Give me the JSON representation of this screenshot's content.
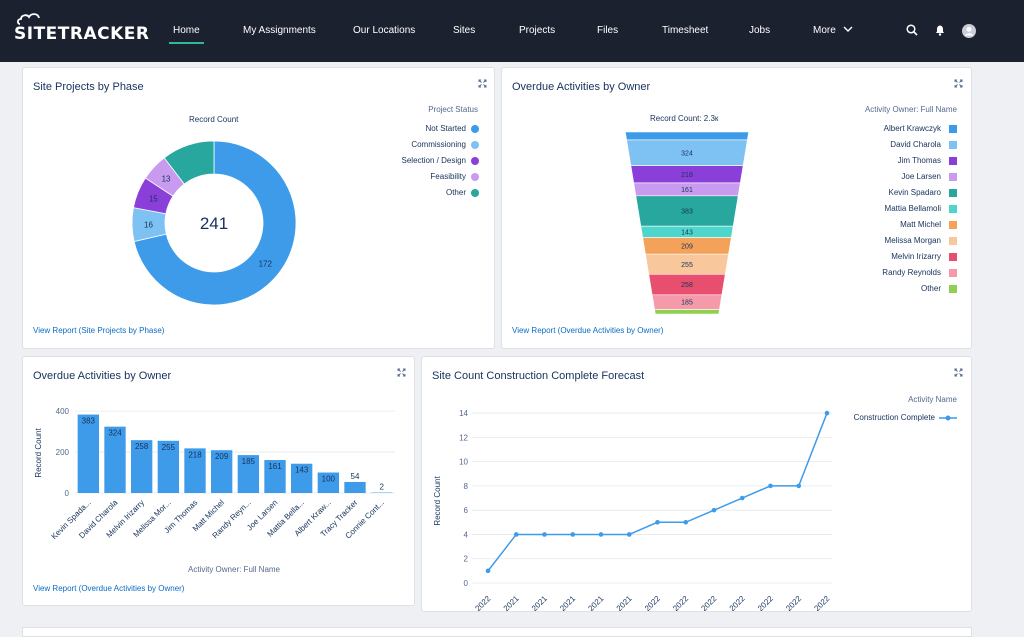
{
  "nav": {
    "logo": "SITETRACKER",
    "items": [
      {
        "label": "Home",
        "active": true
      },
      {
        "label": "My Assignments"
      },
      {
        "label": "Our Locations"
      },
      {
        "label": "Sites"
      },
      {
        "label": "Projects"
      },
      {
        "label": "Files"
      },
      {
        "label": "Timesheet"
      },
      {
        "label": "Jobs"
      },
      {
        "label": "More"
      }
    ],
    "icons": [
      "search-icon",
      "bell-icon",
      "user-avatar-icon"
    ]
  },
  "cards": {
    "phase": {
      "title": "Site Projects by Phase",
      "chart_label": "Record Count",
      "center_total": "241",
      "view_report": "View Report (Site Projects by Phase)"
    },
    "funnel": {
      "title": "Overdue Activities by Owner",
      "chart_label": "Record Count: 2.3к",
      "view_report": "View Report (Overdue Activities by Owner)"
    },
    "bar": {
      "title": "Overdue Activities by Owner",
      "view_report": "View Report (Overdue Activities by Owner)"
    },
    "line": {
      "title": "Site Count Construction Complete Forecast"
    }
  },
  "chart_data": [
    {
      "type": "pie",
      "title": "Record Count",
      "legend_title": "Project Status",
      "legend_position": "right",
      "categories": [
        "Not Started",
        "Commissioning",
        "Selection / Design",
        "Feasibility",
        "Other"
      ],
      "values": [
        172,
        16,
        15,
        13,
        25
      ],
      "value_labels": [
        "172",
        "16",
        "15",
        "13",
        ""
      ],
      "colors": [
        "#3d9be9",
        "#7ec1f3",
        "#8b3fd9",
        "#c89af0",
        "#27a79d"
      ],
      "total": 241
    },
    {
      "type": "bar",
      "subtype": "funnel",
      "title": "Record Count: 2.3к",
      "legend_title": "Activity Owner: Full Name",
      "legend_position": "right",
      "categories": [
        "Albert Krawczyk",
        "David Charola",
        "Jim Thomas",
        "Joe Larsen",
        "Kevin Spadaro",
        "Mattia Bellamoli",
        "Matt Michel",
        "Melissa Morgan",
        "Melvin Irizarry",
        "Randy Reynolds",
        "Other"
      ],
      "values": [
        100,
        324,
        218,
        161,
        383,
        143,
        209,
        255,
        258,
        185,
        56
      ],
      "value_labels": [
        "",
        "324",
        "218",
        "161",
        "383",
        "143",
        "209",
        "255",
        "258",
        "185",
        ""
      ],
      "colors": [
        "#3d9be9",
        "#7ec1f3",
        "#8b3fd9",
        "#c89af0",
        "#27a79d",
        "#4fd6cc",
        "#f4a259",
        "#f8c89c",
        "#e84f6e",
        "#f59aa9",
        "#8fd04f"
      ]
    },
    {
      "type": "bar",
      "categories": [
        "Kevin Spada...",
        "David Charola",
        "Melvin Irizarry",
        "Melissa Mor...",
        "Jim Thomas",
        "Matt Michel",
        "Randy Reyn...",
        "Joe Larsen",
        "Mattia Bella...",
        "Albert Kraw...",
        "Tracy Tracker",
        "Connie Cont..."
      ],
      "values": [
        383,
        324,
        258,
        255,
        218,
        209,
        185,
        161,
        143,
        100,
        54,
        2
      ],
      "xlabel": "Activity Owner: Full Name",
      "ylabel": "Record Count",
      "yticks": [
        "0",
        "200",
        "400"
      ],
      "ylim": [
        0,
        420
      ],
      "color": "#3d9be9"
    },
    {
      "type": "line",
      "legend_title": "Activity Name",
      "legend_position": "top-right",
      "series": [
        {
          "name": "Construction Complete",
          "values": [
            1,
            4,
            4,
            4,
            4,
            4,
            5,
            5,
            6,
            7,
            8,
            8,
            14
          ]
        }
      ],
      "x_tick_labels": [
        "2022",
        "2021",
        "2021",
        "2021",
        "2021",
        "2021",
        "2022",
        "2022",
        "2022",
        "2022",
        "2022",
        "2022",
        "2022"
      ],
      "ylabel": "Record Count",
      "yticks": [
        "0",
        "2",
        "4",
        "6",
        "8",
        "10",
        "12",
        "14"
      ],
      "ylim": [
        0,
        14.5
      ],
      "color": "#3d9be9"
    }
  ]
}
